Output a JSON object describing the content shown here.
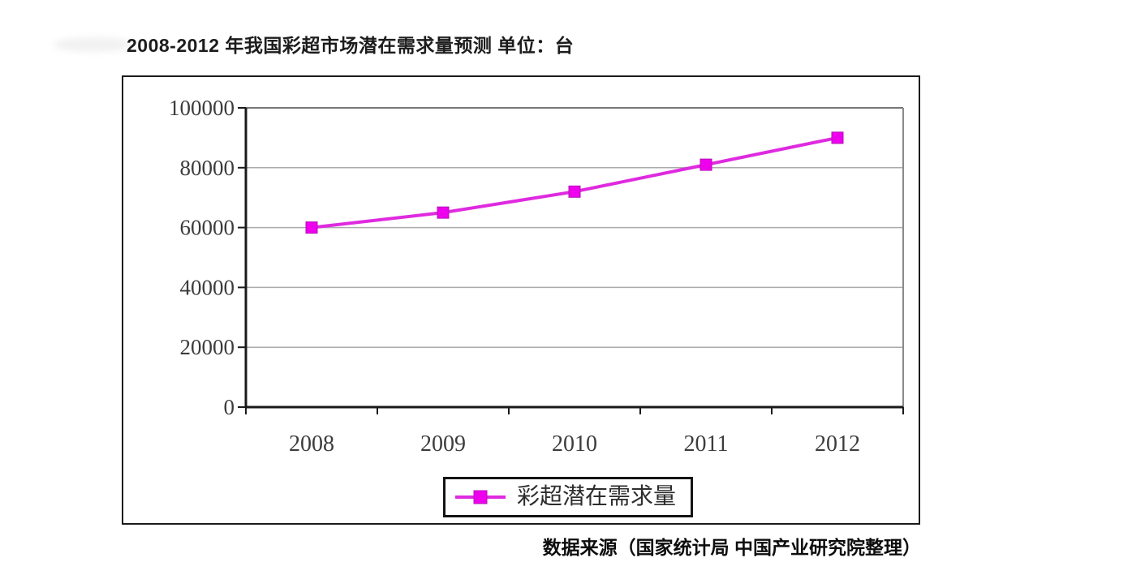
{
  "header": {
    "title": "2008-2012 年我国彩超市场潜在需求量预测 单位：台"
  },
  "footer": {
    "source_note": "数据来源（国家统计局 中国产业研究院整理）"
  },
  "legend": {
    "label": "彩超潜在需求量"
  },
  "chart_data": {
    "type": "line",
    "title": "2008-2012 年我国彩超市场潜在需求量预测",
    "unit": "台",
    "categories": [
      "2008",
      "2009",
      "2010",
      "2011",
      "2012"
    ],
    "series": [
      {
        "name": "彩超潜在需求量",
        "values": [
          60000,
          65000,
          72000,
          81000,
          90000
        ],
        "color": "#df2adf",
        "marker": "square",
        "marker_color": "#ee00ee",
        "marker_edge_color": "#b511b5"
      }
    ],
    "xlabel": "",
    "ylabel": "",
    "ylim": [
      0,
      100000
    ],
    "yticks": [
      0,
      20000,
      40000,
      60000,
      80000,
      100000
    ],
    "grid": true,
    "legend_position": "bottom-center",
    "source": "数据来源（国家统计局 中国产业研究院整理）"
  },
  "colors": {
    "axis": "#1a1a1a",
    "gridline": "#ababab",
    "plot_top_border": "#777777",
    "plot_right_border": "#8a8a8a",
    "tick_text": "#3c3c3c"
  }
}
